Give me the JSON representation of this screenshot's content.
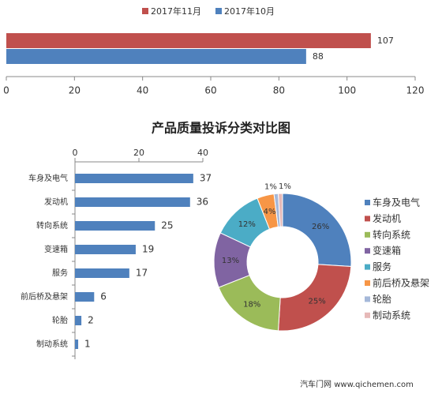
{
  "chart_data": [
    {
      "type": "bar",
      "orientation": "horizontal",
      "categories": [
        null
      ],
      "series": [
        {
          "name": "2017年11月",
          "color": "#c0504d",
          "values": [
            107
          ]
        },
        {
          "name": "2017年10月",
          "color": "#4f81bd",
          "values": [
            88
          ]
        }
      ],
      "xlim": [
        0,
        120
      ],
      "xticks": [
        0,
        20,
        40,
        60,
        80,
        100,
        120
      ],
      "grid": false,
      "legend": "top"
    },
    {
      "type": "bar",
      "orientation": "horizontal",
      "title": "产品质量投诉分类对比图",
      "categories": [
        "车身及电气",
        "发动机",
        "转向系统",
        "变速箱",
        "服务",
        "前后桥及悬架",
        "轮胎",
        "制动系统"
      ],
      "values": [
        37,
        36,
        25,
        19,
        17,
        6,
        2,
        1
      ],
      "color": "#4f81bd",
      "xlim": [
        0,
        40
      ],
      "xticks": [
        0,
        20,
        40
      ],
      "grid": false
    },
    {
      "type": "pie",
      "donut": true,
      "categories": [
        "车身及电气",
        "发动机",
        "转向系统",
        "变速箱",
        "服务",
        "前后桥及悬架",
        "轮胎",
        "制动系统"
      ],
      "values": [
        26,
        25,
        18,
        13,
        12,
        4,
        1,
        1
      ],
      "value_labels": [
        "26%",
        "25%",
        "18%",
        "13%",
        "12%",
        "4%",
        "1%",
        "1%"
      ],
      "colors": [
        "#4f81bd",
        "#c0504d",
        "#9bbb59",
        "#8064a2",
        "#4bacc6",
        "#f79646",
        "#a5b8d9",
        "#e6b9b8"
      ],
      "legend": "right",
      "source": "汽车门网 www.qichemen.com"
    }
  ]
}
